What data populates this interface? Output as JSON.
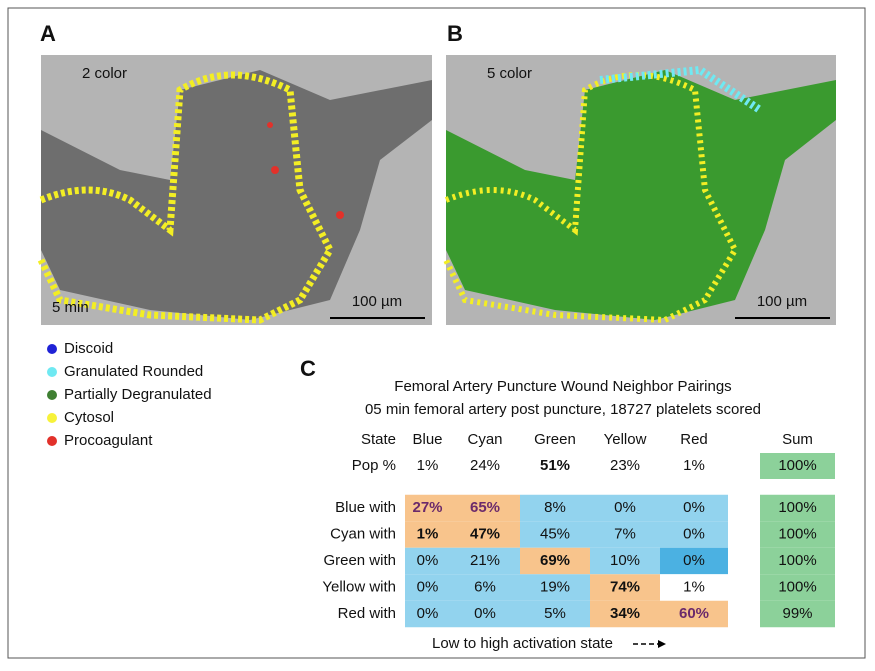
{
  "panels": [
    {
      "letter": "A",
      "label": "2 color",
      "time": "5 min",
      "scale": "100 µm"
    },
    {
      "letter": "B",
      "label": "5 color",
      "scale": "100 µm"
    }
  ],
  "legend": [
    {
      "name": "Discoid",
      "color": "#1f22d6"
    },
    {
      "name": "Granulated Rounded",
      "color": "#6fe9f2"
    },
    {
      "name": "Partially Degranulated",
      "color": "#3f7f32"
    },
    {
      "name": "Cytosol",
      "color": "#f7f23a"
    },
    {
      "name": "Procoagulant",
      "color": "#e2312a"
    }
  ],
  "table": {
    "letter": "C",
    "title": "Femoral Artery Puncture Wound Neighbor Pairings",
    "subtitle": "05 min femoral artery post puncture, 18727 platelets scored",
    "header": [
      "State",
      "Blue",
      "Cyan",
      "Green",
      "Yellow",
      "Red",
      "Sum"
    ],
    "pop": [
      "Pop %",
      "1%",
      "24%",
      "51%",
      "23%",
      "1%",
      "100%"
    ],
    "rows": [
      [
        "Blue with",
        "27%",
        "65%",
        "8%",
        "0%",
        "0%",
        "100%"
      ],
      [
        "Cyan with",
        "1%",
        "47%",
        "45%",
        "7%",
        "0%",
        "100%"
      ],
      [
        "Green with",
        "0%",
        "21%",
        "69%",
        "10%",
        "0%",
        "100%"
      ],
      [
        "Yellow with",
        "0%",
        "6%",
        "19%",
        "74%",
        "1%",
        "100%"
      ],
      [
        "Red with",
        "0%",
        "0%",
        "5%",
        "34%",
        "60%",
        "99%"
      ]
    ],
    "footer": "Low to high activation state"
  }
}
